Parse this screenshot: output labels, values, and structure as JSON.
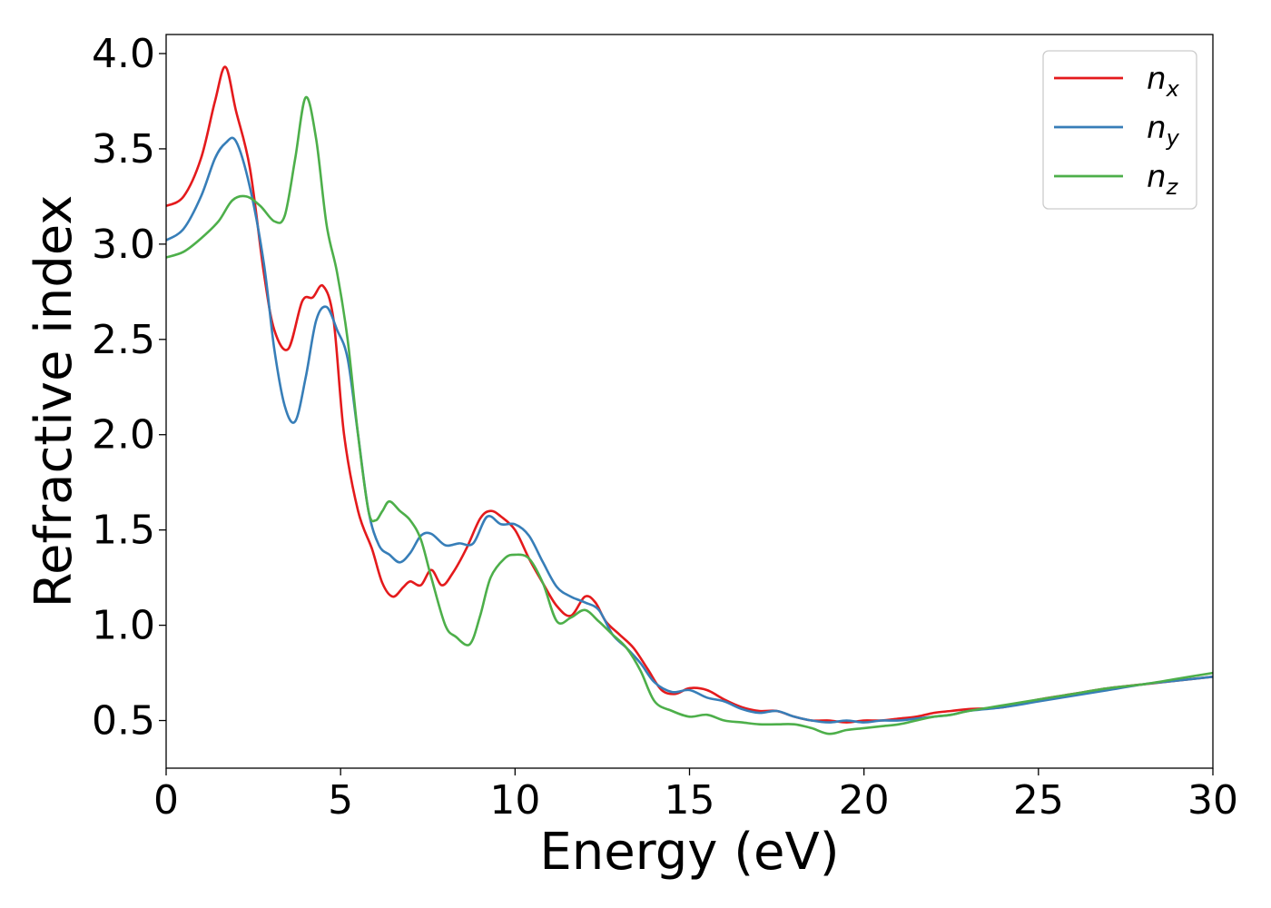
{
  "chart_data": {
    "type": "line",
    "title": "",
    "xlabel": "Energy (eV)",
    "ylabel": "Refractive index",
    "xlim": [
      0,
      30
    ],
    "ylim": [
      0.25,
      4.1
    ],
    "xticks": [
      0,
      5,
      10,
      15,
      20,
      25,
      30
    ],
    "xtick_labels": [
      "0",
      "5",
      "10",
      "15",
      "20",
      "25",
      "30"
    ],
    "yticks": [
      0.5,
      1.0,
      1.5,
      2.0,
      2.5,
      3.0,
      3.5,
      4.0
    ],
    "ytick_labels": [
      "0.5",
      "1.0",
      "1.5",
      "2.0",
      "2.5",
      "3.0",
      "3.5",
      "4.0"
    ],
    "grid": false,
    "legend_position": "top-right",
    "series": [
      {
        "name": "n",
        "subscript": "x",
        "color": "#e41a1c",
        "x": [
          0,
          0.5,
          1.0,
          1.4,
          1.7,
          2.0,
          2.4,
          2.8,
          3.1,
          3.5,
          3.9,
          4.2,
          4.5,
          4.8,
          5.1,
          5.5,
          5.9,
          6.2,
          6.5,
          6.8,
          7.0,
          7.3,
          7.6,
          7.9,
          8.2,
          8.6,
          9.0,
          9.3,
          9.6,
          10.0,
          10.4,
          10.8,
          11.2,
          11.6,
          12.0,
          12.3,
          12.6,
          13.0,
          13.4,
          13.8,
          14.2,
          14.6,
          15.0,
          15.5,
          16.0,
          16.5,
          17.0,
          17.5,
          18.0,
          18.5,
          19.0,
          19.5,
          20.0,
          20.5,
          21.0,
          21.5,
          22.0,
          22.5,
          23.0,
          24.0,
          25.0,
          26.0,
          27.0,
          28.0,
          29.0,
          30.0
        ],
        "values": [
          3.2,
          3.25,
          3.45,
          3.75,
          3.93,
          3.7,
          3.4,
          2.85,
          2.55,
          2.45,
          2.7,
          2.72,
          2.78,
          2.6,
          2.0,
          1.6,
          1.4,
          1.22,
          1.15,
          1.2,
          1.23,
          1.21,
          1.29,
          1.21,
          1.27,
          1.4,
          1.56,
          1.6,
          1.57,
          1.5,
          1.35,
          1.22,
          1.1,
          1.05,
          1.15,
          1.12,
          1.02,
          0.95,
          0.88,
          0.77,
          0.66,
          0.64,
          0.67,
          0.66,
          0.61,
          0.57,
          0.55,
          0.55,
          0.52,
          0.5,
          0.5,
          0.49,
          0.5,
          0.5,
          0.51,
          0.52,
          0.54,
          0.55,
          0.56,
          0.57,
          0.61,
          0.64,
          0.67,
          0.69,
          0.71,
          0.73
        ]
      },
      {
        "name": "n",
        "subscript": "y",
        "color": "#377eb8",
        "x": [
          0,
          0.5,
          1.0,
          1.4,
          1.7,
          2.0,
          2.4,
          2.8,
          3.1,
          3.4,
          3.7,
          4.0,
          4.3,
          4.6,
          4.9,
          5.2,
          5.5,
          5.8,
          6.1,
          6.4,
          6.7,
          7.0,
          7.3,
          7.6,
          8.0,
          8.4,
          8.8,
          9.2,
          9.6,
          10.0,
          10.4,
          10.8,
          11.2,
          11.6,
          12.0,
          12.4,
          12.8,
          13.2,
          13.6,
          14.0,
          14.5,
          15.0,
          15.5,
          16.0,
          16.5,
          17.0,
          17.5,
          18.0,
          18.5,
          19.0,
          19.5,
          20.0,
          20.5,
          21.0,
          21.5,
          22.0,
          22.5,
          23.0,
          24.0,
          25.0,
          26.0,
          27.0,
          28.0,
          29.0,
          30.0
        ],
        "values": [
          3.02,
          3.08,
          3.25,
          3.45,
          3.53,
          3.54,
          3.3,
          2.9,
          2.45,
          2.15,
          2.07,
          2.3,
          2.6,
          2.67,
          2.55,
          2.4,
          2.0,
          1.6,
          1.42,
          1.37,
          1.33,
          1.38,
          1.47,
          1.48,
          1.42,
          1.43,
          1.43,
          1.57,
          1.53,
          1.53,
          1.47,
          1.33,
          1.2,
          1.15,
          1.12,
          1.08,
          0.95,
          0.88,
          0.8,
          0.7,
          0.65,
          0.66,
          0.62,
          0.6,
          0.56,
          0.54,
          0.55,
          0.52,
          0.5,
          0.49,
          0.5,
          0.49,
          0.5,
          0.5,
          0.51,
          0.52,
          0.53,
          0.55,
          0.57,
          0.6,
          0.63,
          0.66,
          0.69,
          0.71,
          0.73
        ]
      },
      {
        "name": "n",
        "subscript": "z",
        "color": "#4daf4a",
        "x": [
          0,
          0.5,
          1.0,
          1.5,
          1.9,
          2.3,
          2.7,
          3.1,
          3.4,
          3.7,
          4.0,
          4.3,
          4.6,
          4.9,
          5.2,
          5.5,
          5.8,
          6.0,
          6.2,
          6.4,
          6.7,
          7.0,
          7.3,
          7.6,
          8.0,
          8.3,
          8.7,
          9.0,
          9.3,
          9.7,
          10.0,
          10.4,
          10.8,
          11.2,
          11.6,
          12.0,
          12.4,
          12.8,
          13.2,
          13.6,
          14.0,
          14.5,
          15.0,
          15.5,
          16.0,
          16.5,
          17.0,
          17.5,
          18.0,
          18.5,
          19.0,
          19.5,
          20.0,
          20.5,
          21.0,
          21.5,
          22.0,
          22.5,
          23.0,
          24.0,
          25.0,
          26.0,
          27.0,
          28.0,
          29.0,
          30.0
        ],
        "values": [
          2.93,
          2.96,
          3.03,
          3.12,
          3.23,
          3.25,
          3.2,
          3.12,
          3.15,
          3.45,
          3.77,
          3.55,
          3.1,
          2.85,
          2.5,
          2.0,
          1.6,
          1.55,
          1.6,
          1.65,
          1.6,
          1.55,
          1.45,
          1.25,
          1.0,
          0.94,
          0.9,
          1.05,
          1.25,
          1.35,
          1.37,
          1.35,
          1.22,
          1.02,
          1.04,
          1.08,
          1.02,
          0.95,
          0.88,
          0.76,
          0.6,
          0.55,
          0.52,
          0.53,
          0.5,
          0.49,
          0.48,
          0.48,
          0.48,
          0.46,
          0.43,
          0.45,
          0.46,
          0.47,
          0.48,
          0.5,
          0.52,
          0.53,
          0.55,
          0.58,
          0.61,
          0.64,
          0.67,
          0.69,
          0.72,
          0.75
        ]
      }
    ]
  }
}
